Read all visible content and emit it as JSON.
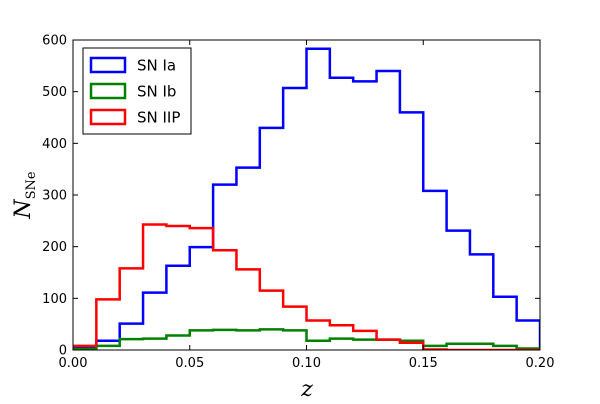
{
  "chart_data": {
    "type": "line",
    "style": "step-histogram",
    "title": "",
    "xlabel": "z",
    "ylabel_main": "N",
    "ylabel_sub": "SNe",
    "xlim": [
      0.0,
      0.2
    ],
    "ylim": [
      0,
      600
    ],
    "x_ticks": [
      "0.00",
      "0.05",
      "0.10",
      "0.15",
      "0.20"
    ],
    "x_tick_values": [
      0.0,
      0.05,
      0.1,
      0.15,
      0.2
    ],
    "y_ticks": [
      "0",
      "100",
      "200",
      "300",
      "400",
      "500",
      "600"
    ],
    "y_tick_values": [
      0,
      100,
      200,
      300,
      400,
      500,
      600
    ],
    "grid": false,
    "legend_position": "top-left",
    "bin_edges": [
      0.0,
      0.01,
      0.02,
      0.03,
      0.04,
      0.05,
      0.06,
      0.07,
      0.08,
      0.09,
      0.1,
      0.11,
      0.12,
      0.13,
      0.14,
      0.15,
      0.16,
      0.17,
      0.18,
      0.19,
      0.2
    ],
    "series": [
      {
        "name": "SN Ia",
        "color": "#0000ff",
        "values": [
          5,
          18,
          51,
          111,
          163,
          199,
          320,
          353,
          430,
          507,
          583,
          527,
          520,
          540,
          460,
          308,
          231,
          185,
          103,
          57
        ]
      },
      {
        "name": "SN Ib",
        "color": "#008000",
        "values": [
          2,
          8,
          21,
          22,
          28,
          38,
          39,
          38,
          40,
          38,
          18,
          22,
          20,
          20,
          18,
          8,
          12,
          12,
          8,
          3
        ]
      },
      {
        "name": "SN IIP",
        "color": "#ff0000",
        "values": [
          8,
          98,
          158,
          243,
          240,
          236,
          193,
          156,
          115,
          84,
          57,
          48,
          37,
          20,
          14,
          1,
          0,
          0,
          0,
          0
        ]
      }
    ]
  }
}
